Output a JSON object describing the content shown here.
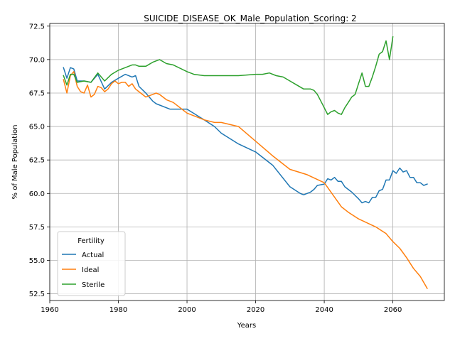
{
  "chart_data": {
    "type": "line",
    "title": "SUICIDE_DISEASE_OK_Male_Population_Scoring: 2",
    "xlabel": "Years",
    "ylabel": "% of Male Population",
    "xlim": [
      1960,
      2075
    ],
    "ylim": [
      52,
      72.7
    ],
    "xticks": [
      1960,
      1980,
      2000,
      2020,
      2040,
      2060
    ],
    "xtick_labels": [
      "1960",
      "1980",
      "2000",
      "2020",
      "2040",
      "2060"
    ],
    "yticks": [
      52.5,
      55.0,
      57.5,
      60.0,
      62.5,
      65.0,
      67.5,
      70.0,
      72.5
    ],
    "ytick_labels": [
      "52.5",
      "55.0",
      "57.5",
      "60.0",
      "62.5",
      "65.0",
      "67.5",
      "70.0",
      "72.5"
    ],
    "grid": true,
    "legend": {
      "title": "Fertility",
      "placement": "lower-left"
    },
    "series": [
      {
        "name": "Actual",
        "color": "#1f77b4",
        "x": [
          1964,
          1965,
          1966,
          1967,
          1968,
          1970,
          1972,
          1974,
          1976,
          1978,
          1980,
          1982,
          1984,
          1985,
          1986,
          1988,
          1990,
          1991,
          1995,
          1997,
          2000,
          2005,
          2008,
          2010,
          2015,
          2020,
          2025,
          2030,
          2033,
          2034,
          2036,
          2037,
          2038,
          2040,
          2041,
          2042,
          2043,
          2044,
          2045,
          2046,
          2048,
          2050,
          2051,
          2052,
          2053,
          2054,
          2055,
          2056,
          2057,
          2058,
          2059,
          2060,
          2061,
          2062,
          2063,
          2064,
          2065,
          2066,
          2067,
          2068,
          2069,
          2070
        ],
        "y": [
          69.4,
          68.6,
          69.4,
          69.3,
          68.4,
          68.4,
          68.3,
          68.9,
          67.8,
          68.3,
          68.6,
          68.9,
          68.7,
          68.8,
          68.0,
          67.5,
          66.9,
          66.7,
          66.3,
          66.3,
          66.3,
          65.5,
          65.0,
          64.5,
          63.7,
          63.1,
          62.1,
          60.5,
          60.0,
          59.9,
          60.1,
          60.3,
          60.6,
          60.7,
          61.1,
          61.0,
          61.2,
          60.9,
          60.9,
          60.5,
          60.1,
          59.6,
          59.3,
          59.4,
          59.3,
          59.7,
          59.7,
          60.2,
          60.3,
          61.0,
          61.0,
          61.7,
          61.5,
          61.9,
          61.6,
          61.7,
          61.2,
          61.2,
          60.8,
          60.8,
          60.6,
          60.7
        ]
      },
      {
        "name": "Ideal",
        "color": "#ff7f0e",
        "x": [
          1964,
          1965,
          1966,
          1967,
          1968,
          1969,
          1970,
          1971,
          1972,
          1973,
          1974,
          1975,
          1976,
          1977,
          1978,
          1979,
          1980,
          1981,
          1982,
          1983,
          1984,
          1985,
          1986,
          1988,
          1990,
          1991,
          1992,
          1994,
          1996,
          2000,
          2005,
          2008,
          2010,
          2015,
          2020,
          2025,
          2030,
          2035,
          2040,
          2045,
          2047,
          2050,
          2055,
          2058,
          2060,
          2062,
          2064,
          2066,
          2068,
          2070
        ],
        "y": [
          68.5,
          67.5,
          68.8,
          69.1,
          68.0,
          67.6,
          67.5,
          68.1,
          67.2,
          67.4,
          68.0,
          67.9,
          67.6,
          67.8,
          68.2,
          68.4,
          68.2,
          68.3,
          68.3,
          68.0,
          68.2,
          67.8,
          67.6,
          67.2,
          67.4,
          67.5,
          67.4,
          67.0,
          66.8,
          66.0,
          65.5,
          65.3,
          65.3,
          65.0,
          63.9,
          62.8,
          61.8,
          61.4,
          60.8,
          59.0,
          58.6,
          58.1,
          57.5,
          57.0,
          56.4,
          55.9,
          55.2,
          54.4,
          53.8,
          52.9
        ]
      },
      {
        "name": "Sterile",
        "color": "#2ca02c",
        "x": [
          1964,
          1965,
          1966,
          1967,
          1968,
          1970,
          1972,
          1974,
          1976,
          1978,
          1980,
          1982,
          1984,
          1985,
          1986,
          1988,
          1990,
          1992,
          1994,
          1996,
          2000,
          2002,
          2005,
          2010,
          2015,
          2020,
          2022,
          2024,
          2026,
          2028,
          2030,
          2032,
          2034,
          2036,
          2037,
          2038,
          2039,
          2040,
          2041,
          2042,
          2043,
          2044,
          2045,
          2046,
          2047,
          2048,
          2049,
          2050,
          2051,
          2052,
          2053,
          2054,
          2055,
          2056,
          2057,
          2058,
          2059,
          2060
        ],
        "y": [
          68.8,
          68.1,
          68.9,
          68.9,
          68.3,
          68.4,
          68.3,
          69.0,
          68.4,
          68.9,
          69.2,
          69.4,
          69.6,
          69.6,
          69.5,
          69.5,
          69.8,
          70.0,
          69.7,
          69.6,
          69.1,
          68.9,
          68.8,
          68.8,
          68.8,
          68.9,
          68.9,
          69.0,
          68.8,
          68.7,
          68.4,
          68.1,
          67.8,
          67.8,
          67.7,
          67.4,
          66.9,
          66.4,
          65.9,
          66.1,
          66.2,
          66.0,
          65.9,
          66.4,
          66.8,
          67.2,
          67.4,
          68.2,
          69.0,
          68.0,
          68.0,
          68.7,
          69.5,
          70.4,
          70.6,
          71.4,
          70.0,
          71.7
        ]
      }
    ]
  }
}
